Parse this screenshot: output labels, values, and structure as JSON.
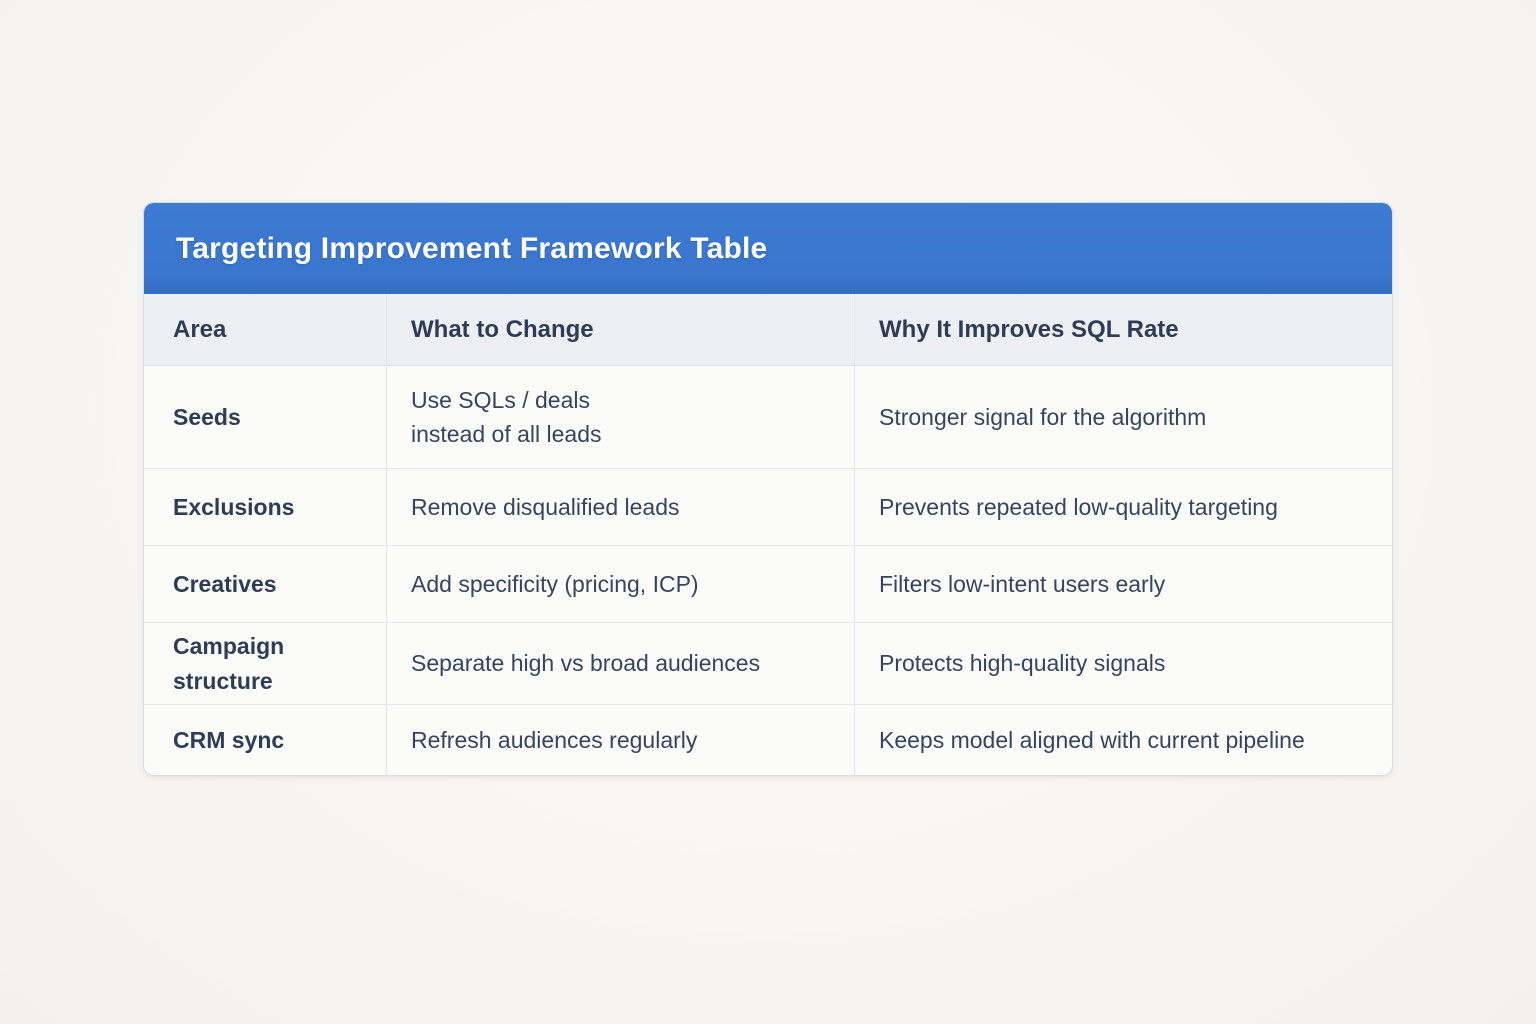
{
  "card": {
    "title": "Targeting Improvement Framework Table",
    "header_bg_color": "#3a76cd",
    "title_color": "#fdfdfe"
  },
  "table": {
    "columns": {
      "area": "Area",
      "change": "What to Change",
      "why": "Why It Improves SQL Rate"
    },
    "rows": [
      {
        "area": "Seeds",
        "change": "Use SQLs / deals\ninstead of all leads",
        "why": "Stronger signal for the algorithm"
      },
      {
        "area": "Exclusions",
        "change": "Remove disqualified leads",
        "why": "Prevents repeated low-quality targeting"
      },
      {
        "area": "Creatives",
        "change": "Add specificity (pricing, ICP)",
        "why": "Filters low-intent users early"
      },
      {
        "area": "Campaign structure",
        "change": "Separate high vs broad audiences",
        "why": "Protects high-quality signals"
      },
      {
        "area": "CRM sync",
        "change": "Refresh audiences regularly",
        "why": "Keeps model aligned with current pipeline"
      }
    ]
  },
  "colors": {
    "page_bg": "#f7f5f3",
    "card_bg": "#fbfbfa",
    "header_row_bg": "#edeff3",
    "header_text": "#2e3d56",
    "body_text": "#36445e",
    "border": "#e2e4e9",
    "accent_blue": "#3a76cd"
  }
}
